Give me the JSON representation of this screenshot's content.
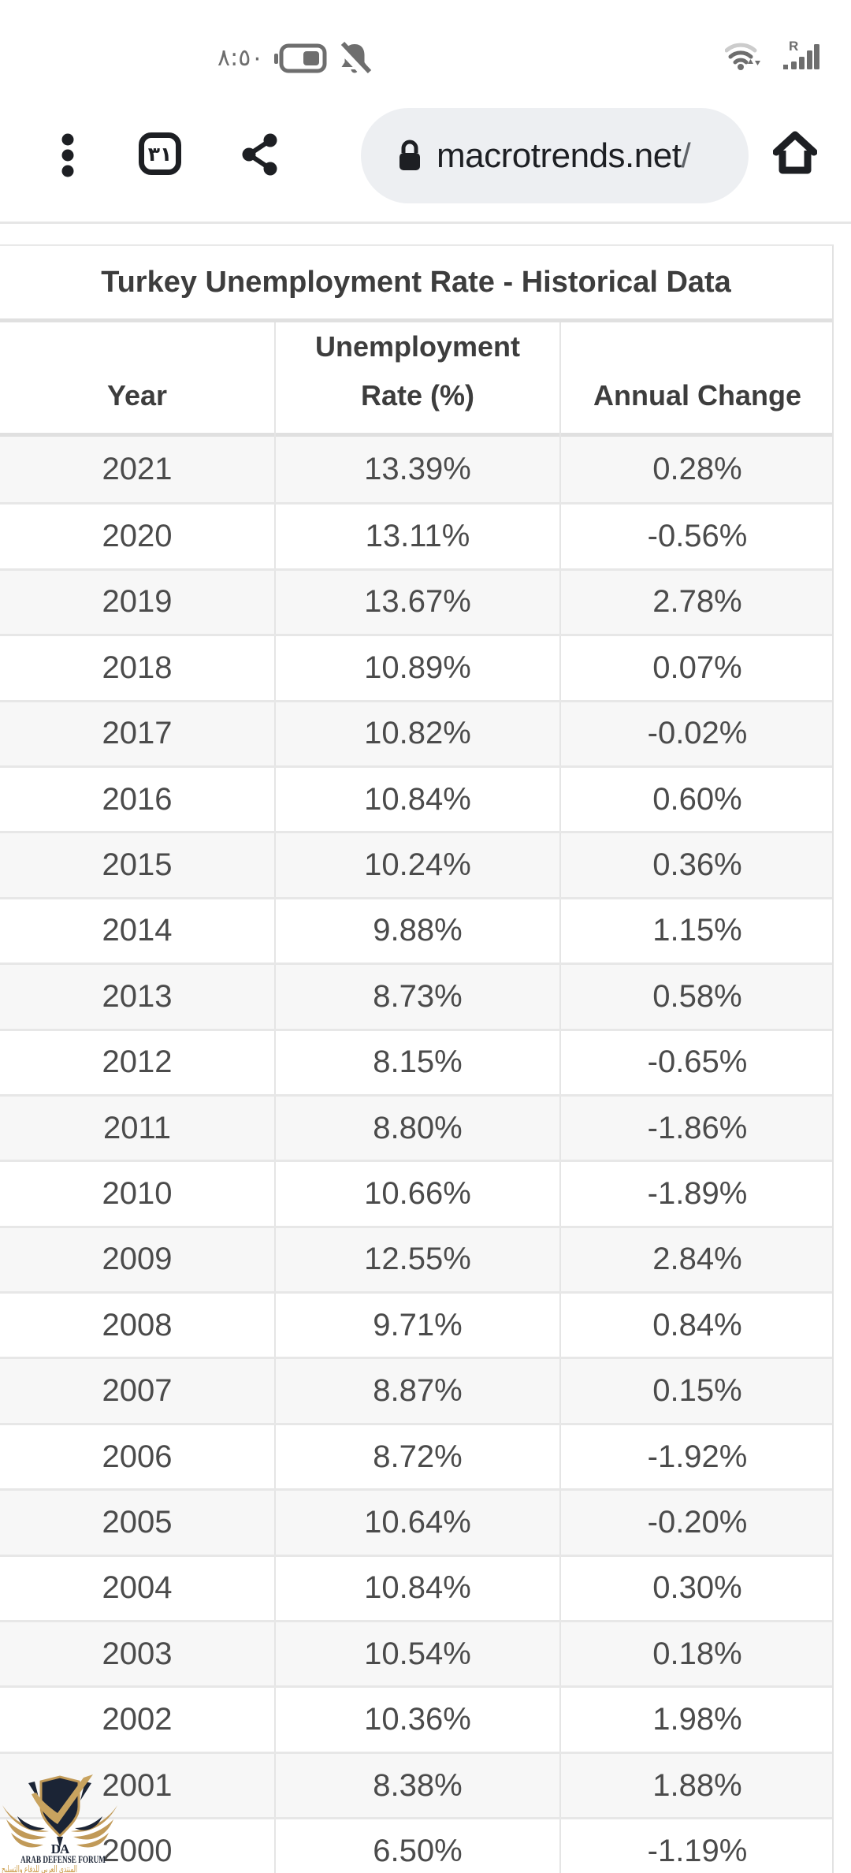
{
  "status_bar": {
    "time": "٨:٥٠",
    "signal_label": "R"
  },
  "toolbar": {
    "tab_count": "٣١",
    "url": "macrotrends.net",
    "url_suffix": "/"
  },
  "table": {
    "title": "Turkey Unemployment Rate - Historical Data",
    "headers": [
      "Year",
      "Unemployment\nRate (%)",
      "Annual Change"
    ],
    "rows": [
      [
        "2021",
        "13.39%",
        "0.28%"
      ],
      [
        "2020",
        "13.11%",
        "-0.56%"
      ],
      [
        "2019",
        "13.67%",
        "2.78%"
      ],
      [
        "2018",
        "10.89%",
        "0.07%"
      ],
      [
        "2017",
        "10.82%",
        "-0.02%"
      ],
      [
        "2016",
        "10.84%",
        "0.60%"
      ],
      [
        "2015",
        "10.24%",
        "0.36%"
      ],
      [
        "2014",
        "9.88%",
        "1.15%"
      ],
      [
        "2013",
        "8.73%",
        "0.58%"
      ],
      [
        "2012",
        "8.15%",
        "-0.65%"
      ],
      [
        "2011",
        "8.80%",
        "-1.86%"
      ],
      [
        "2010",
        "10.66%",
        "-1.89%"
      ],
      [
        "2009",
        "12.55%",
        "2.84%"
      ],
      [
        "2008",
        "9.71%",
        "0.84%"
      ],
      [
        "2007",
        "8.87%",
        "0.15%"
      ],
      [
        "2006",
        "8.72%",
        "-1.92%"
      ],
      [
        "2005",
        "10.64%",
        "-0.20%"
      ],
      [
        "2004",
        "10.84%",
        "0.30%"
      ],
      [
        "2003",
        "10.54%",
        "0.18%"
      ],
      [
        "2002",
        "10.36%",
        "1.98%"
      ],
      [
        "2001",
        "8.38%",
        "1.88%"
      ],
      [
        "2000",
        "6.50%",
        "-1.19%"
      ]
    ]
  },
  "chart_data": {
    "type": "table",
    "title": "Turkey Unemployment Rate - Historical Data",
    "categories": [
      "2021",
      "2020",
      "2019",
      "2018",
      "2017",
      "2016",
      "2015",
      "2014",
      "2013",
      "2012",
      "2011",
      "2010",
      "2009",
      "2008",
      "2007",
      "2006",
      "2005",
      "2004",
      "2003",
      "2002",
      "2001",
      "2000"
    ],
    "series": [
      {
        "name": "Unemployment Rate (%)",
        "values": [
          13.39,
          13.11,
          13.67,
          10.89,
          10.82,
          10.84,
          10.24,
          9.88,
          8.73,
          8.15,
          8.8,
          10.66,
          12.55,
          9.71,
          8.87,
          8.72,
          10.64,
          10.84,
          10.54,
          10.36,
          8.38,
          6.5
        ]
      },
      {
        "name": "Annual Change",
        "values": [
          0.28,
          -0.56,
          2.78,
          0.07,
          -0.02,
          0.6,
          0.36,
          1.15,
          0.58,
          -0.65,
          -1.86,
          -1.89,
          2.84,
          0.84,
          0.15,
          -1.92,
          -0.2,
          0.3,
          0.18,
          1.98,
          1.88,
          -1.19
        ]
      }
    ]
  },
  "watermark": {
    "monogram": "DA",
    "name": "ARAB DEFENSE FORUM",
    "arabic": "المنتدى العربي للدفاع والتسليح"
  },
  "colors": {
    "accent_gold": "#c19a58",
    "navy": "#1b2435",
    "row_stripe": "#f7f7f7",
    "border": "#e0e0e0",
    "url_pill": "#edeff2",
    "icon_dark": "#1d1f23",
    "status_gray": "#6e6e6e"
  }
}
